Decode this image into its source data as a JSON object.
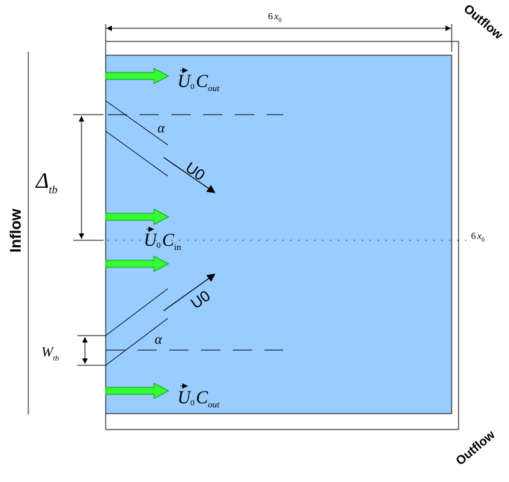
{
  "colors": {
    "domain_fill": "#99ccff",
    "arrow_fill": "#33ff33",
    "arrow_stroke": "#119911",
    "line": "#000000"
  },
  "labels": {
    "width_dim": "6",
    "width_dim_var": "x",
    "width_dim_sub": "0",
    "height_dim": "6",
    "height_dim_var": "x",
    "height_dim_sub": "0",
    "outflow_top": "Outflow",
    "outflow_bottom": "Outflow",
    "inflow": "Inflow",
    "delta_main": "Δ",
    "delta_sub": "tb",
    "w_main": "W",
    "w_sub": "tb",
    "alpha_top": "α",
    "alpha_bottom": "α",
    "u0_top": "U0",
    "u0_bottom": "U0",
    "jet_top_u": "U",
    "jet_top_sub0": "0",
    "jet_top_c": "C",
    "jet_top_csub": "out",
    "jet_mid_u": "U",
    "jet_mid_sub0": "0",
    "jet_mid_c": "C",
    "jet_mid_csub": "in",
    "jet_bottom_u": "U",
    "jet_bottom_sub0": "0",
    "jet_bottom_c": "C",
    "jet_bottom_csub": "out"
  }
}
